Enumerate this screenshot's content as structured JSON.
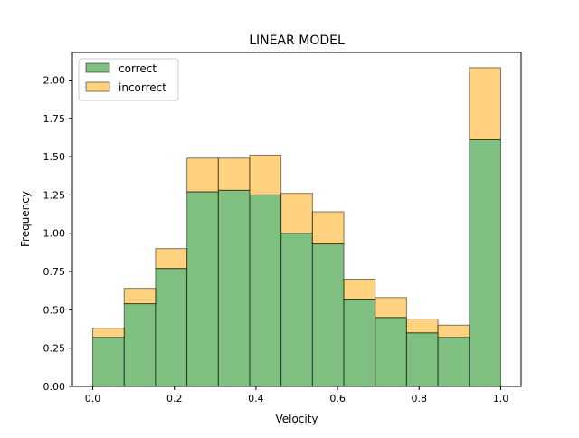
{
  "chart_data": {
    "type": "bar",
    "stacked": true,
    "title": "LINEAR MODEL",
    "xlabel": "Velocity",
    "ylabel": "Frequency",
    "xlim": [
      -0.05,
      1.05
    ],
    "ylim": [
      0,
      2.18
    ],
    "grid": false,
    "legend_position": "top-left",
    "bin_edges": [
      0.0,
      0.0769,
      0.1538,
      0.2308,
      0.3077,
      0.3846,
      0.4615,
      0.5385,
      0.6154,
      0.6923,
      0.7692,
      0.8462,
      0.9231,
      1.0
    ],
    "x_ticks": [
      {
        "value": 0.0,
        "label": "0.0"
      },
      {
        "value": 0.2,
        "label": "0.2"
      },
      {
        "value": 0.4,
        "label": "0.4"
      },
      {
        "value": 0.6,
        "label": "0.6"
      },
      {
        "value": 0.8,
        "label": "0.8"
      },
      {
        "value": 1.0,
        "label": "1.0"
      }
    ],
    "y_ticks": [
      {
        "value": 0.0,
        "label": "0.00"
      },
      {
        "value": 0.25,
        "label": "0.25"
      },
      {
        "value": 0.5,
        "label": "0.50"
      },
      {
        "value": 0.75,
        "label": "0.75"
      },
      {
        "value": 1.0,
        "label": "1.00"
      },
      {
        "value": 1.25,
        "label": "1.25"
      },
      {
        "value": 1.5,
        "label": "1.50"
      },
      {
        "value": 1.75,
        "label": "1.75"
      },
      {
        "value": 2.0,
        "label": "2.00"
      }
    ],
    "series": [
      {
        "name": "correct",
        "color": "#008000",
        "values": [
          0.32,
          0.54,
          0.77,
          1.27,
          1.28,
          1.25,
          1.0,
          0.93,
          0.57,
          0.45,
          0.35,
          0.32,
          1.61
        ]
      },
      {
        "name": "incorrect",
        "color": "#FFA500",
        "values": [
          0.06,
          0.1,
          0.13,
          0.22,
          0.21,
          0.26,
          0.26,
          0.21,
          0.13,
          0.13,
          0.09,
          0.08,
          0.47
        ]
      }
    ]
  }
}
